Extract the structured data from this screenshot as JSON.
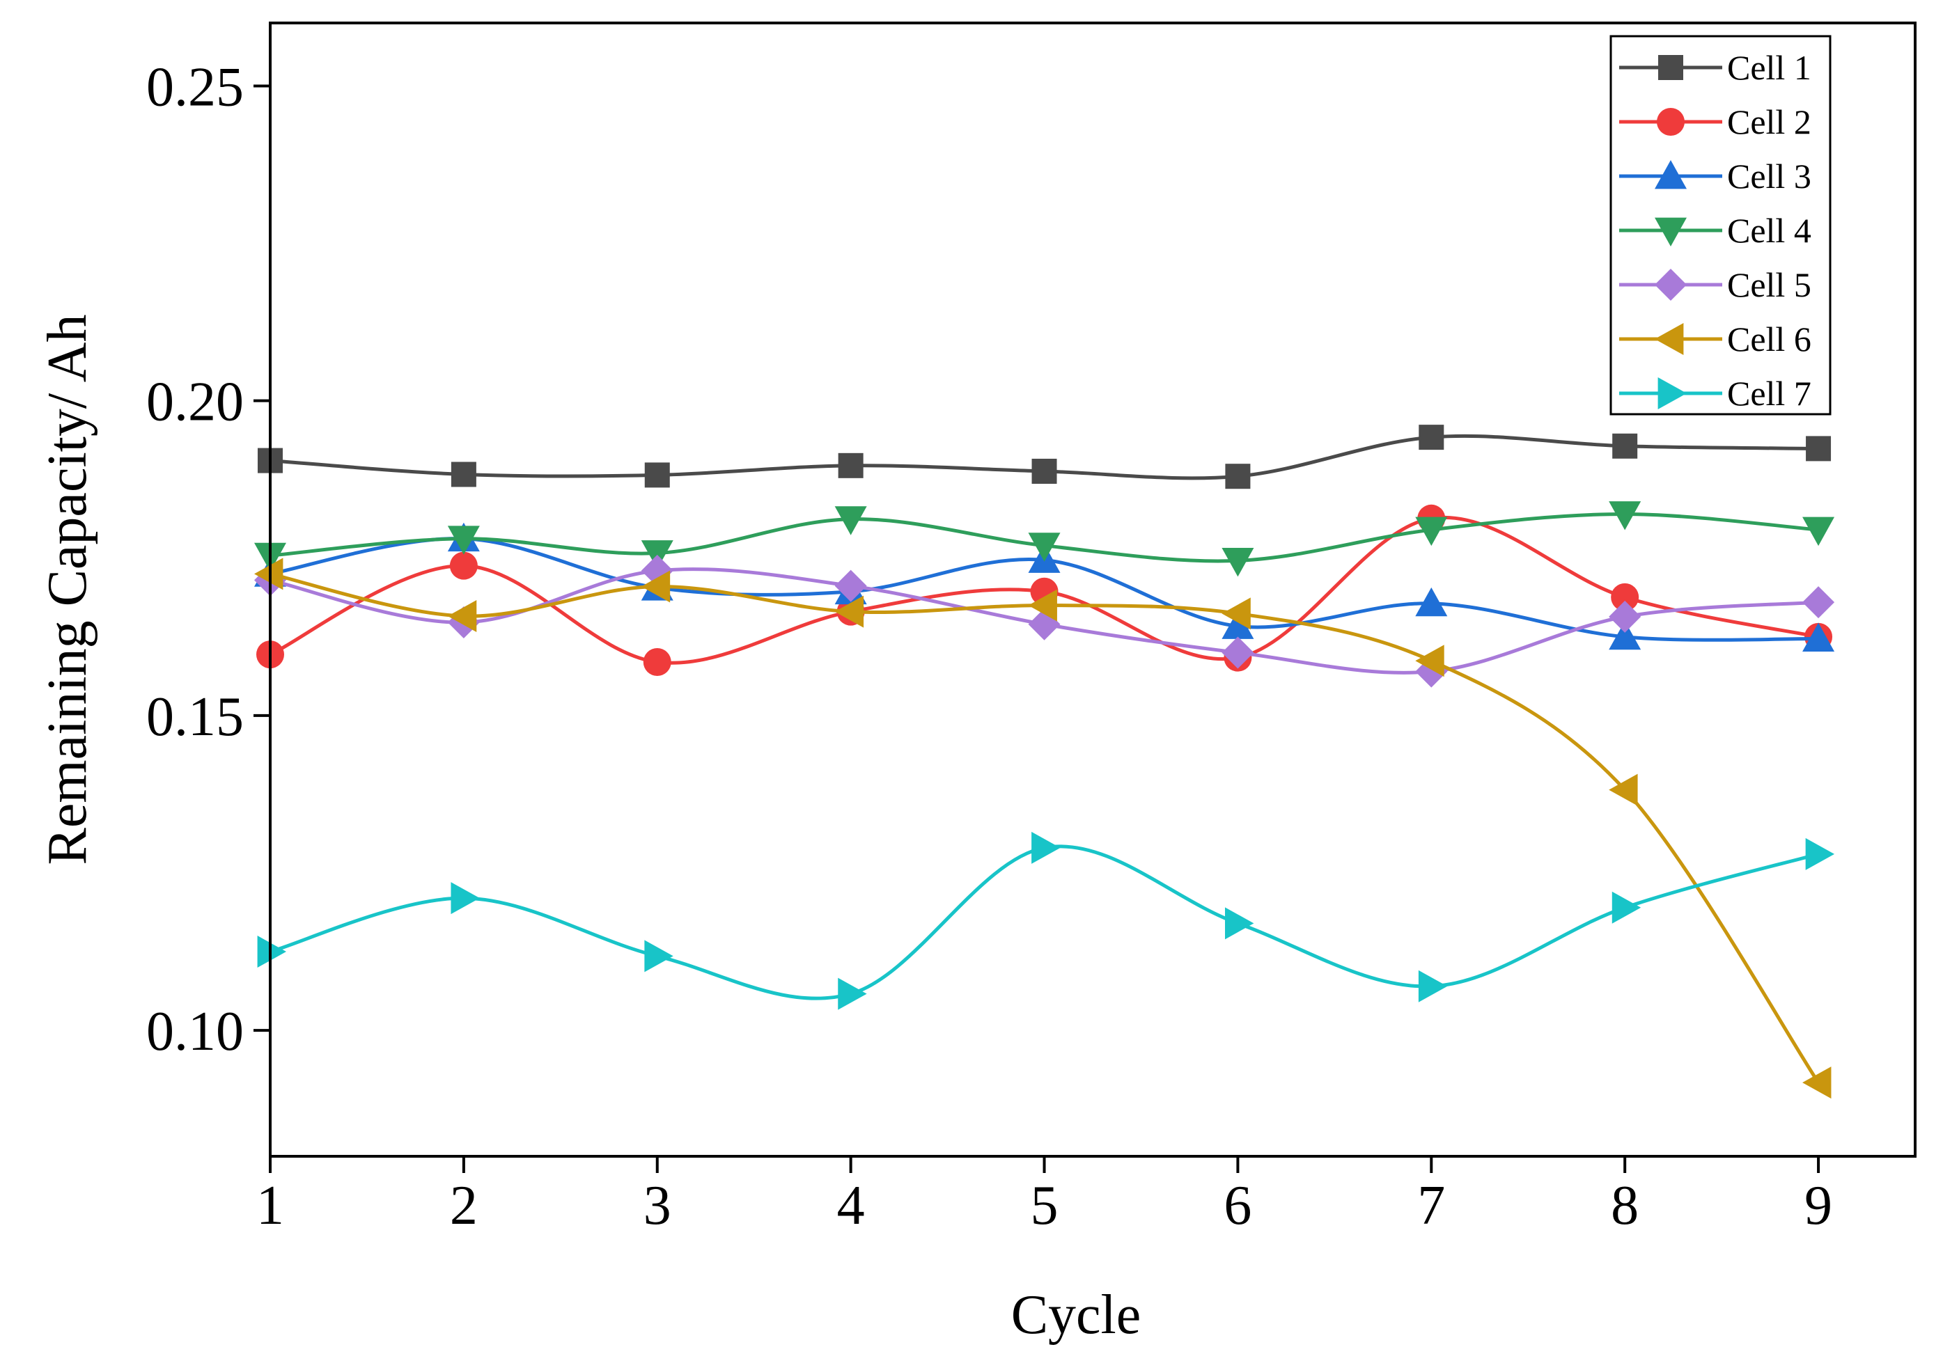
{
  "chart_data": {
    "type": "line",
    "title": "",
    "xlabel": "Cycle",
    "ylabel": "Remaining Capacity/ Ah",
    "x": [
      1,
      2,
      3,
      4,
      5,
      6,
      7,
      8,
      9
    ],
    "xlim": [
      1,
      9.5
    ],
    "ylim": [
      0.08,
      0.26
    ],
    "xticks": [
      "1",
      "2",
      "3",
      "4",
      "5",
      "6",
      "7",
      "8",
      "9"
    ],
    "yticks": [
      "0.10",
      "0.15",
      "0.20",
      "0.25"
    ],
    "ytick_values": [
      0.1,
      0.15,
      0.2,
      0.25
    ],
    "grid": false,
    "legend_position": "top-right",
    "smooth": true,
    "series": [
      {
        "name": "Cell 1",
        "color": "#4a4a4a",
        "marker": "square",
        "values": [
          0.1905,
          0.1883,
          0.1882,
          0.1897,
          0.1888,
          0.188,
          0.1942,
          0.1928,
          0.1924
        ]
      },
      {
        "name": "Cell 2",
        "color": "#ef3b3b",
        "marker": "circle",
        "values": [
          0.1597,
          0.1738,
          0.1585,
          0.1665,
          0.1697,
          0.1592,
          0.1813,
          0.1688,
          0.1625
        ]
      },
      {
        "name": "Cell 3",
        "color": "#1f6fd6",
        "marker": "triangle-up",
        "values": [
          0.1725,
          0.1781,
          0.1703,
          0.1697,
          0.1747,
          0.1642,
          0.1678,
          0.1625,
          0.1622
        ]
      },
      {
        "name": "Cell 4",
        "color": "#2e9e5b",
        "marker": "triangle-down",
        "values": [
          0.1754,
          0.1781,
          0.1758,
          0.1812,
          0.177,
          0.1746,
          0.1795,
          0.182,
          0.1795
        ]
      },
      {
        "name": "Cell 5",
        "color": "#a87ad9",
        "marker": "diamond",
        "values": [
          0.1715,
          0.1648,
          0.173,
          0.1706,
          0.1645,
          0.16,
          0.157,
          0.1657,
          0.168
        ]
      },
      {
        "name": "Cell 6",
        "color": "#c9960e",
        "marker": "triangle-left",
        "values": [
          0.1725,
          0.1658,
          0.1705,
          0.1665,
          0.1675,
          0.1662,
          0.1587,
          0.1382,
          0.0917
        ]
      },
      {
        "name": "Cell 7",
        "color": "#18c4c8",
        "marker": "triangle-right",
        "values": [
          0.1125,
          0.121,
          0.1118,
          0.1058,
          0.129,
          0.117,
          0.107,
          0.1195,
          0.128
        ]
      }
    ]
  }
}
